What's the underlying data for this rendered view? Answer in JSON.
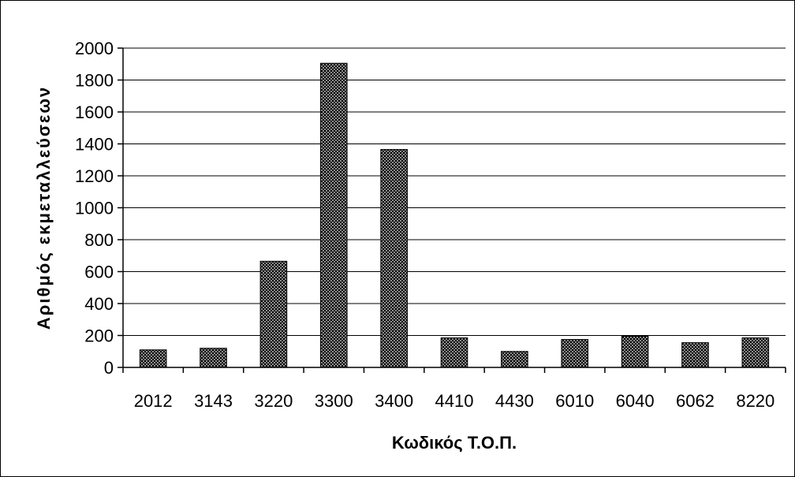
{
  "chart_data": {
    "type": "bar",
    "title": "",
    "xlabel": "Κωδικός Τ.Ο.Π.",
    "ylabel": "Αριθμός εκμεταλλεύσεων",
    "categories": [
      "2012",
      "3143",
      "3220",
      "3300",
      "3400",
      "4410",
      "4430",
      "6010",
      "6040",
      "6062",
      "8220"
    ],
    "values": [
      110,
      120,
      665,
      1905,
      1365,
      185,
      100,
      175,
      195,
      155,
      185
    ],
    "ylim": [
      0,
      2000
    ],
    "yticks": [
      0,
      200,
      400,
      600,
      800,
      1000,
      1200,
      1400,
      1600,
      1800,
      2000
    ],
    "grid": true,
    "legend": "none",
    "bar_fill": "#000000",
    "bar_dot_color": "#ffffff"
  }
}
